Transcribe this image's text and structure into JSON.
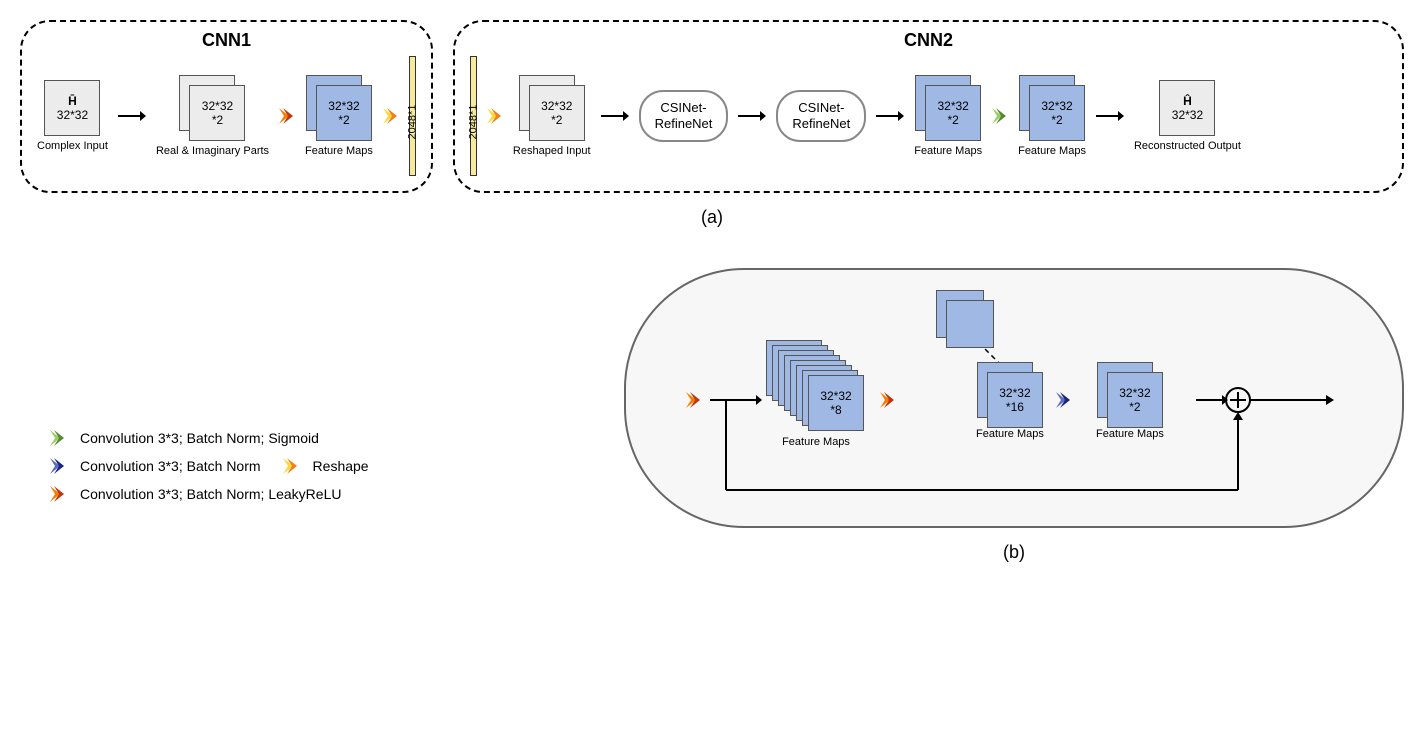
{
  "colors": {
    "gray_fill": "#ececec",
    "blue_fill": "#9fb8e4",
    "yellow_fill": "#f5e99c",
    "bg": "#ffffff",
    "border_dark": "#000000",
    "pill_border": "#888888",
    "big_pill_bg": "#f7f7f7"
  },
  "chevrons": {
    "green": [
      "#9ccc65",
      "#558b2f"
    ],
    "darkblue": [
      "#5c6bc0",
      "#1a237e"
    ],
    "orange": [
      "#f57c00",
      "#bf360c"
    ],
    "yellow": [
      "#fdd835",
      "#f57f17"
    ]
  },
  "cnn1": {
    "title": "CNN1",
    "input": {
      "title": "H̄",
      "size": "32*32",
      "label": "Complex Input"
    },
    "realimag": {
      "size": "32*32\n*2",
      "label": "Real & Imaginary Parts"
    },
    "feature": {
      "size": "32*32\n*2",
      "label": "Feature Maps"
    },
    "vbar": "2048*1"
  },
  "cnn2": {
    "title": "CNN2",
    "vbar": "2048*1",
    "reshape": {
      "size": "32*32\n*2",
      "label": "Reshaped  Input"
    },
    "refine1": "CSINet-\nRefineNet",
    "refine2": "CSINet-\nRefineNet",
    "feat1": {
      "size": "32*32\n*2",
      "label": "Feature Maps"
    },
    "feat2": {
      "size": "32*32\n*2",
      "label": "Feature Maps"
    },
    "output": {
      "title": "Ĥ",
      "size": "32*32",
      "label": "Reconstructed Output"
    }
  },
  "sub_a": "(a)",
  "sub_b": "(b)",
  "legend": {
    "green": "Convolution 3*3; Batch Norm; Sigmoid",
    "darkblue": "Convolution 3*3; Batch Norm",
    "yellow": "Reshape",
    "orange": "Convolution 3*3; Batch Norm; LeakyReLU"
  },
  "refinenet": {
    "f1": {
      "size": "32*32\n*8",
      "label": "Feature Maps",
      "count": 8
    },
    "f2": {
      "size": "32*32\n*16",
      "label": "Feature Maps"
    },
    "f3": {
      "size": "32*32\n*2",
      "label": "Feature Maps"
    }
  }
}
